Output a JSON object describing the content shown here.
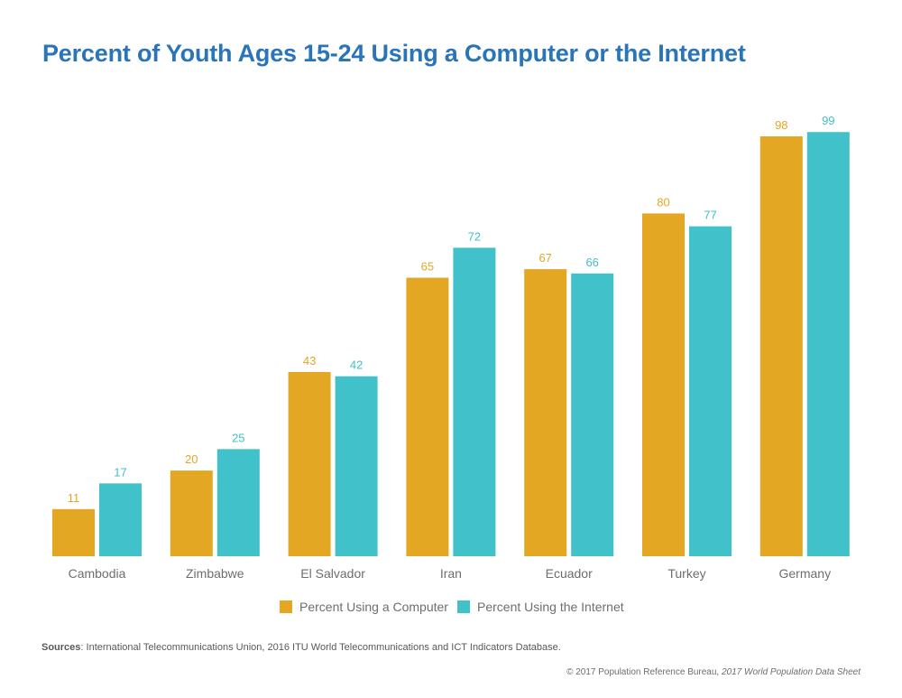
{
  "title": "Percent of Youth Ages 15-24 Using a Computer or the Internet",
  "colors": {
    "computer": "#e3a724",
    "internet": "#41c1ca",
    "title": "#2a74b8",
    "axis_text": "#6d6e71"
  },
  "legend": {
    "computer_label": "Percent Using a Computer",
    "internet_label": "Percent Using the Internet"
  },
  "footer": {
    "sources_label": "Sources",
    "sources_text": ": International Telecommunications Union, 2016 ITU World Telecommunications and ICT Indicators Database.",
    "copyright_text": "© 2017 Population Reference Bureau, ",
    "copyright_italic": "2017 World Population Data Sheet"
  },
  "chart_data": {
    "type": "bar",
    "title": "Percent of Youth Ages 15-24 Using a Computer or the Internet",
    "xlabel": "",
    "ylabel": "",
    "ylim": [
      0,
      100
    ],
    "grid": false,
    "legend_position": "bottom",
    "categories": [
      "Cambodia",
      "Zimbabwe",
      "El Salvador",
      "Iran",
      "Ecuador",
      "Turkey",
      "Germany"
    ],
    "series": [
      {
        "name": "Percent Using a Computer",
        "values": [
          11,
          20,
          43,
          65,
          67,
          80,
          98
        ]
      },
      {
        "name": "Percent Using the Internet",
        "values": [
          17,
          25,
          42,
          72,
          66,
          77,
          99
        ]
      }
    ]
  }
}
